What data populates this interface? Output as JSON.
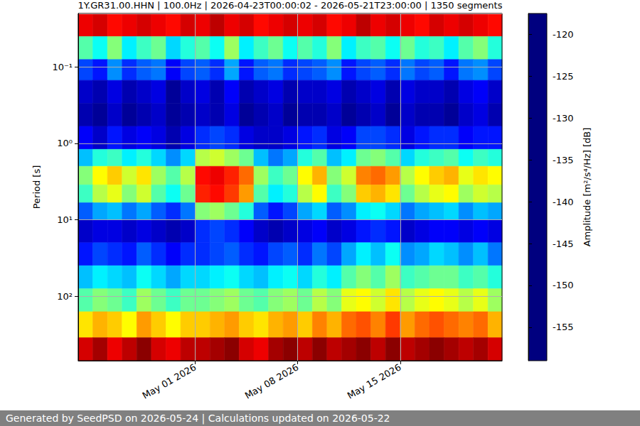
{
  "chart_data": {
    "type": "heatmap",
    "title": "1Y.GR31.00.HHN | 100.0Hz | 2026-04-23T00:00:02 - 2026-05-21T23:00:00 | 1350 segments",
    "footer": "Generated by SeedPSD on 2026-05-24 | Calculations updated on 2026-05-22",
    "ylabel": "Period [s]",
    "colorbar_label": "Amplitude [m²/s⁴/Hz] [dB]",
    "log": "y",
    "grid": true,
    "xlim": [
      "2026-04-23T00:00:02",
      "2026-05-21T23:00:00"
    ],
    "xticks": [
      {
        "value": "2026-05-01T00:00:00",
        "label": "May 01 2026"
      },
      {
        "value": "2026-05-08T00:00:00",
        "label": "May 08 2026"
      },
      {
        "value": "2026-05-15T00:00:00",
        "label": "May 15 2026"
      }
    ],
    "ylim": [
      0.02,
      700
    ],
    "yticks": [
      {
        "value": 0.1,
        "label": "10⁻¹"
      },
      {
        "value": 1,
        "label": "10⁰"
      },
      {
        "value": 10,
        "label": "10¹"
      },
      {
        "value": 100,
        "label": "10²"
      }
    ],
    "colorbar_range": [
      -159,
      -117.5
    ],
    "colorbar_ticks": [
      -155,
      -150,
      -145,
      -140,
      -135,
      -130,
      -125,
      -120
    ],
    "x_edges": [
      "2026-04-23T00:00:00",
      "2026-04-24T00:00:00",
      "2026-04-25T00:00:00",
      "2026-04-26T00:00:00",
      "2026-04-27T00:00:00",
      "2026-04-28T00:00:00",
      "2026-04-29T00:00:00",
      "2026-04-30T00:00:00",
      "2026-05-01T00:00:00",
      "2026-05-02T00:00:00",
      "2026-05-03T00:00:00",
      "2026-05-04T00:00:00",
      "2026-05-05T00:00:00",
      "2026-05-06T00:00:00",
      "2026-05-07T00:00:00",
      "2026-05-08T00:00:00",
      "2026-05-09T00:00:00",
      "2026-05-10T00:00:00",
      "2026-05-11T00:00:00",
      "2026-05-12T00:00:00",
      "2026-05-13T00:00:00",
      "2026-05-14T00:00:00",
      "2026-05-15T00:00:00",
      "2026-05-16T00:00:00",
      "2026-05-17T00:00:00",
      "2026-05-18T00:00:00",
      "2026-05-19T00:00:00",
      "2026-05-20T00:00:00",
      "2026-05-21T00:00:00",
      "2026-05-22T00:00:00"
    ],
    "y_edges": [
      0.02,
      0.04,
      0.08,
      0.15,
      0.3,
      0.6,
      1.2,
      2,
      3.5,
      6,
      10,
      20,
      40,
      80,
      160,
      350,
      700
    ],
    "cells": [
      [
        -122,
        -121,
        -123,
        -122,
        -121,
        -122,
        -123,
        -121,
        -122,
        -120,
        -122,
        -121,
        -123,
        -122,
        -121,
        -122,
        -121,
        -123,
        -122,
        -120,
        -122,
        -121,
        -122,
        -123,
        -121,
        -122,
        -121,
        -122,
        -123
      ],
      [
        -140,
        -143,
        -138,
        -144,
        -141,
        -139,
        -145,
        -142,
        -140,
        -143,
        -137,
        -144,
        -141,
        -139,
        -143,
        -140,
        -142,
        -138,
        -144,
        -141,
        -140,
        -143,
        -139,
        -142,
        -141,
        -144,
        -140,
        -138,
        -142
      ],
      [
        -151,
        -153,
        -148,
        -152,
        -150,
        -149,
        -154,
        -151,
        -150,
        -152,
        -147,
        -153,
        -150,
        -149,
        -152,
        -151,
        -150,
        -148,
        -153,
        -151,
        -150,
        -152,
        -149,
        -151,
        -150,
        -153,
        -149,
        -148,
        -151
      ],
      [
        -156,
        -157,
        -155,
        -157,
        -156,
        -155,
        -158,
        -156,
        -155,
        -157,
        -154,
        -157,
        -156,
        -155,
        -157,
        -156,
        -156,
        -155,
        -157,
        -156,
        -155,
        -157,
        -155,
        -156,
        -156,
        -157,
        -155,
        -154,
        -156
      ],
      [
        -157,
        -158,
        -156,
        -158,
        -157,
        -156,
        -158,
        -157,
        -156,
        -157,
        -155,
        -158,
        -157,
        -156,
        -158,
        -157,
        -157,
        -156,
        -158,
        -157,
        -156,
        -158,
        -156,
        -157,
        -157,
        -158,
        -156,
        -155,
        -157
      ],
      [
        -154,
        -156,
        -153,
        -155,
        -154,
        -155,
        -157,
        -155,
        -152,
        -151,
        -152,
        -155,
        -156,
        -156,
        -155,
        -153,
        -152,
        -155,
        -154,
        -151,
        -151,
        -152,
        -155,
        -153,
        -152,
        -152,
        -154,
        -153,
        -153
      ],
      [
        -146,
        -142,
        -141,
        -144,
        -142,
        -145,
        -148,
        -145,
        -136,
        -135,
        -137,
        -139,
        -146,
        -149,
        -147,
        -142,
        -140,
        -146,
        -144,
        -139,
        -138,
        -140,
        -145,
        -142,
        -141,
        -140,
        -143,
        -141,
        -142
      ],
      [
        -138,
        -133,
        -131,
        -135,
        -132,
        -137,
        -140,
        -136,
        -123,
        -122,
        -124,
        -127,
        -137,
        -141,
        -139,
        -133,
        -130,
        -138,
        -135,
        -128,
        -127,
        -129,
        -136,
        -133,
        -131,
        -130,
        -134,
        -132,
        -133
      ],
      [
        -141,
        -136,
        -134,
        -138,
        -135,
        -140,
        -143,
        -139,
        -124,
        -123,
        -125,
        -129,
        -140,
        -144,
        -142,
        -136,
        -133,
        -141,
        -138,
        -131,
        -130,
        -132,
        -139,
        -136,
        -134,
        -133,
        -137,
        -135,
        -136
      ],
      [
        -150,
        -147,
        -146,
        -149,
        -147,
        -150,
        -152,
        -149,
        -138,
        -137,
        -139,
        -142,
        -150,
        -153,
        -151,
        -147,
        -145,
        -150,
        -148,
        -144,
        -143,
        -145,
        -149,
        -147,
        -146,
        -145,
        -148,
        -146,
        -147
      ],
      [
        -156,
        -155,
        -155,
        -156,
        -155,
        -156,
        -157,
        -156,
        -152,
        -151,
        -152,
        -154,
        -156,
        -157,
        -156,
        -155,
        -154,
        -156,
        -155,
        -153,
        -152,
        -153,
        -156,
        -155,
        -154,
        -154,
        -155,
        -154,
        -155
      ],
      [
        -153,
        -151,
        -152,
        -153,
        -150,
        -152,
        -154,
        -152,
        -152,
        -151,
        -150,
        -152,
        -153,
        -151,
        -150,
        -152,
        -149,
        -151,
        -147,
        -144,
        -146,
        -143,
        -148,
        -147,
        -145,
        -146,
        -148,
        -146,
        -149
      ],
      [
        -146,
        -144,
        -145,
        -146,
        -143,
        -145,
        -147,
        -145,
        -145,
        -144,
        -143,
        -145,
        -146,
        -144,
        -143,
        -145,
        -142,
        -144,
        -140,
        -138,
        -140,
        -137,
        -141,
        -140,
        -139,
        -139,
        -141,
        -140,
        -142
      ],
      [
        -140,
        -138,
        -139,
        -141,
        -137,
        -139,
        -141,
        -139,
        -139,
        -138,
        -137,
        -139,
        -140,
        -138,
        -137,
        -139,
        -136,
        -138,
        -134,
        -133,
        -135,
        -132,
        -136,
        -134,
        -133,
        -134,
        -136,
        -134,
        -137
      ],
      [
        -132,
        -130,
        -131,
        -133,
        -129,
        -131,
        -133,
        -131,
        -131,
        -130,
        -129,
        -131,
        -132,
        -130,
        -129,
        -131,
        -128,
        -130,
        -127,
        -126,
        -128,
        -125,
        -129,
        -127,
        -126,
        -127,
        -128,
        -127,
        -130
      ],
      [
        -121,
        -119,
        -122,
        -120,
        -118,
        -121,
        -122,
        -120,
        -120,
        -119,
        -118,
        -121,
        -122,
        -119,
        -118,
        -120,
        -118,
        -120,
        -119,
        -118,
        -120,
        -118,
        -120,
        -119,
        -118,
        -119,
        -120,
        -119,
        -121
      ]
    ]
  }
}
